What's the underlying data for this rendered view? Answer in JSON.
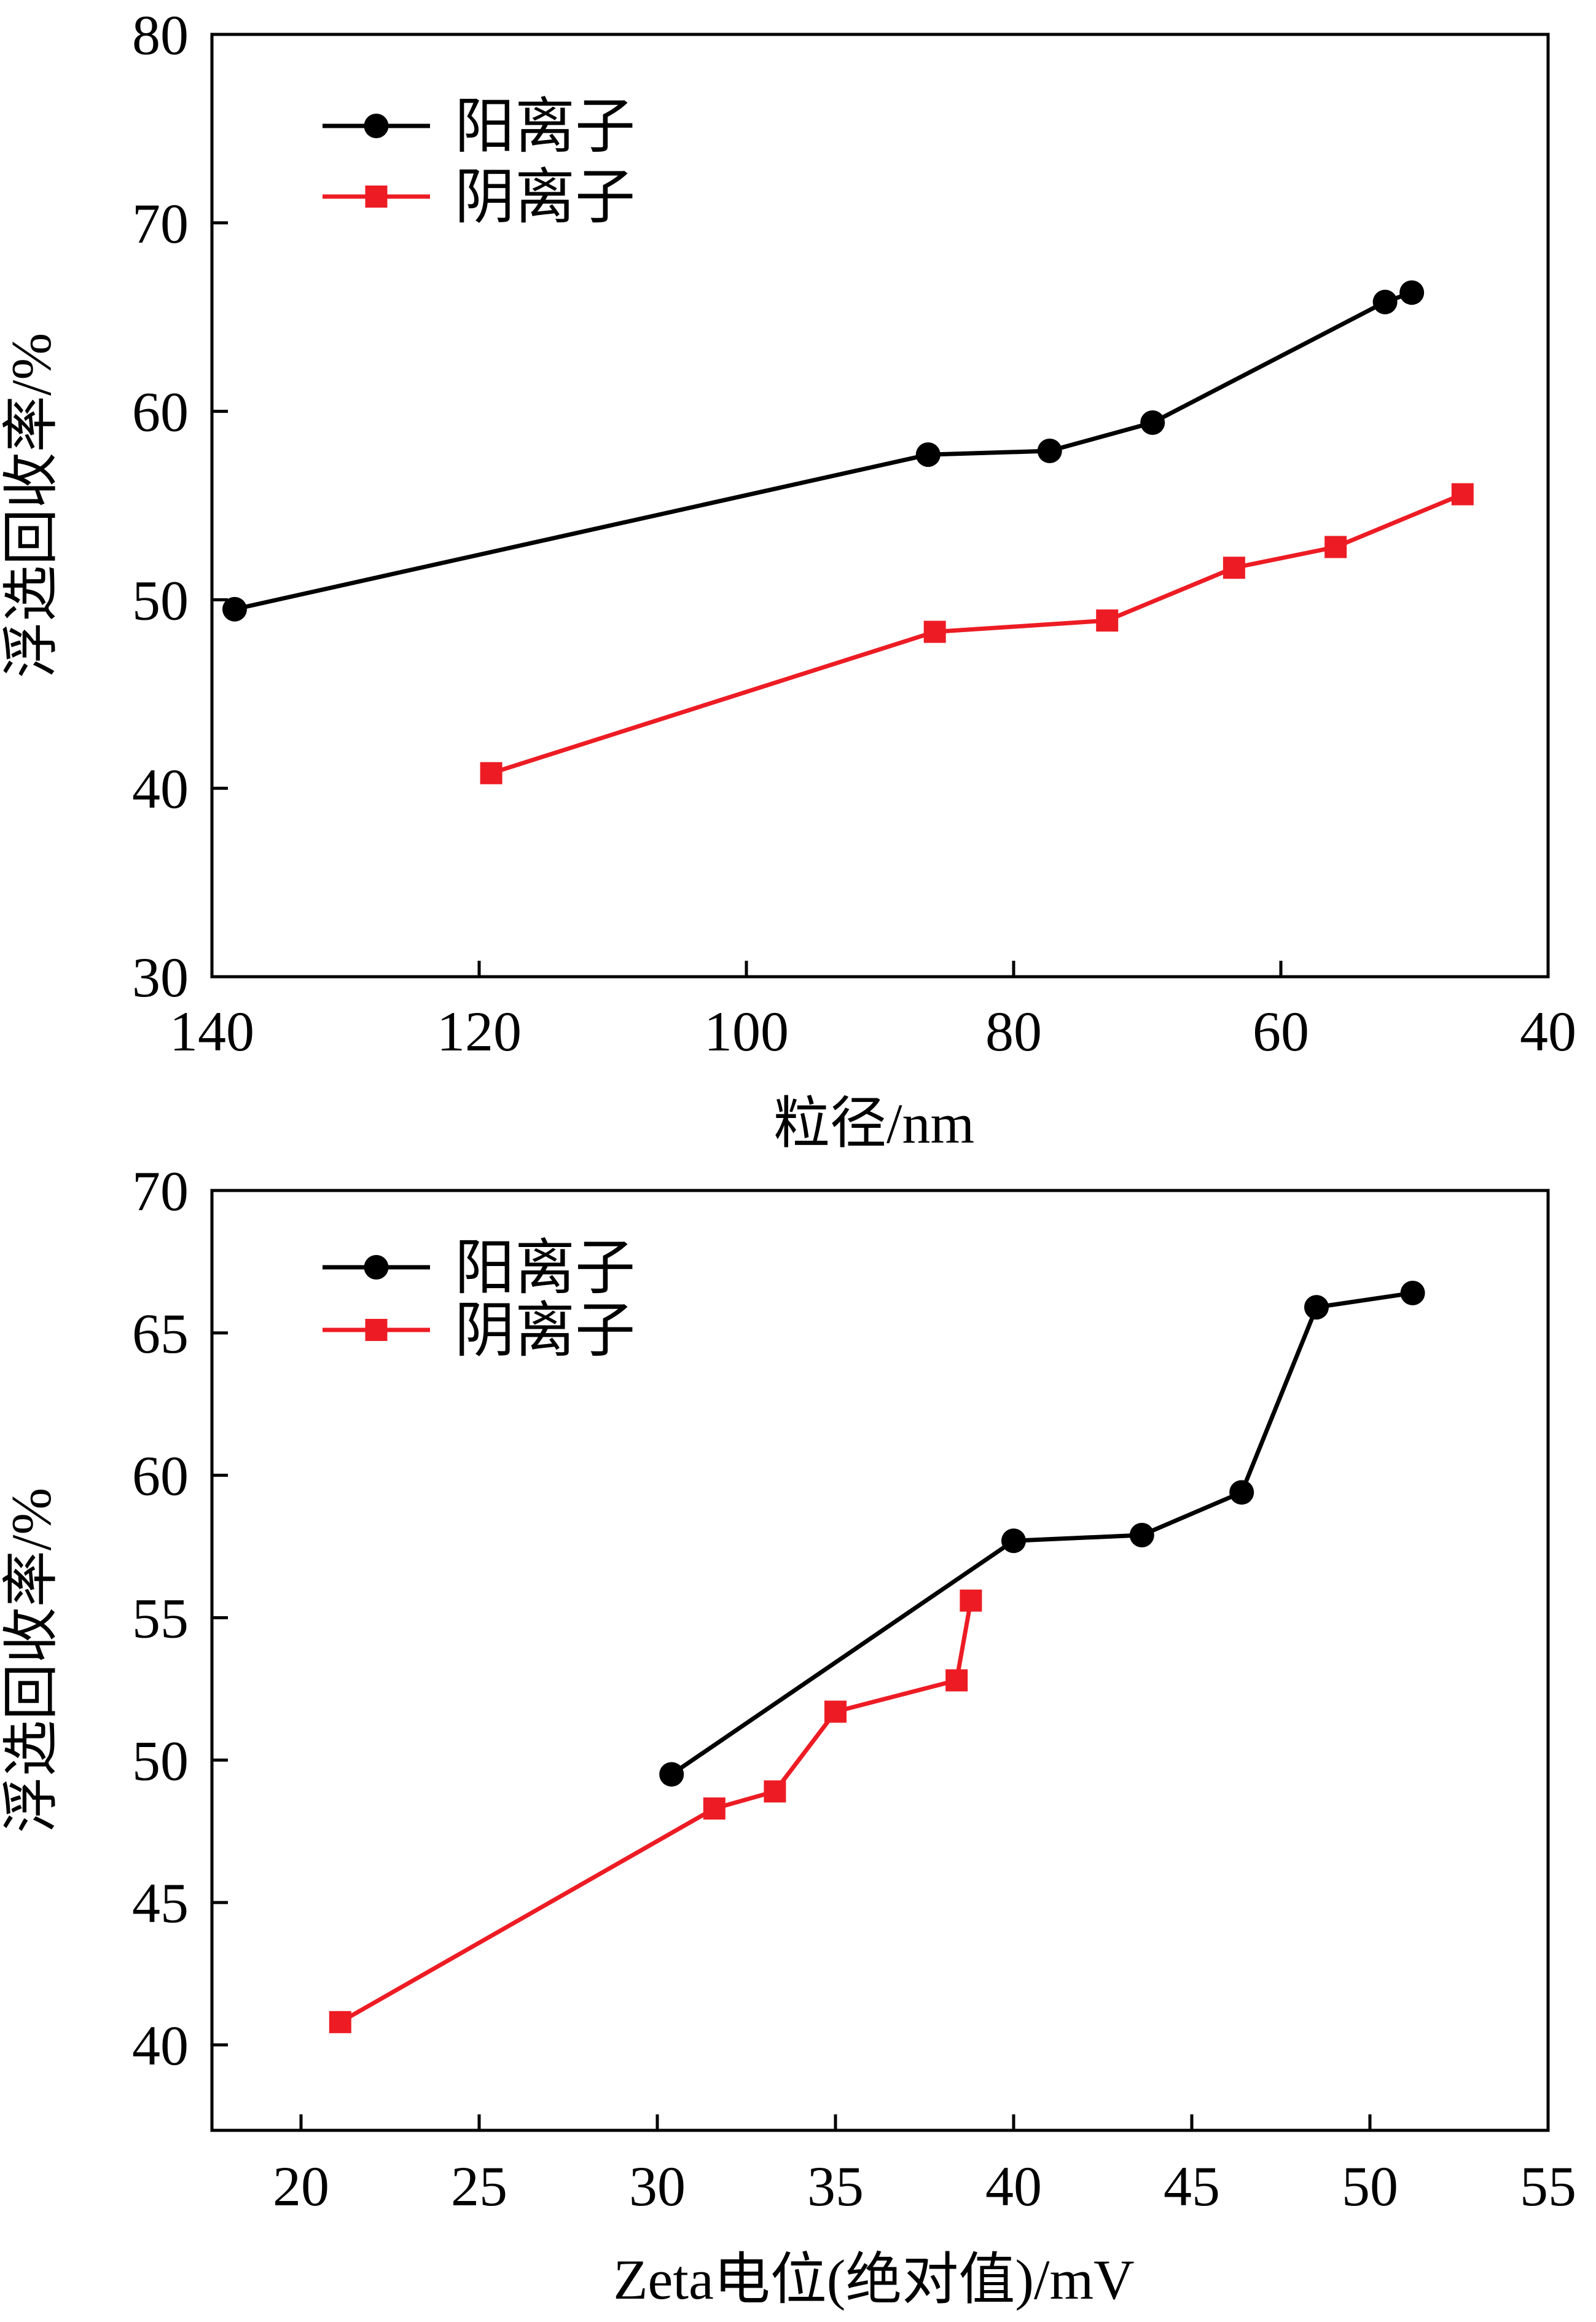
{
  "chart_data": [
    {
      "type": "line",
      "xlabel": "粒径/nm",
      "ylabel": "浮选回收率/%",
      "xlim": [
        140,
        40
      ],
      "ylim": [
        30,
        80
      ],
      "x_reversed": true,
      "xticks": [
        140,
        120,
        100,
        80,
        60,
        40
      ],
      "yticks": [
        30,
        40,
        50,
        60,
        70,
        80
      ],
      "grid": false,
      "legend_position": "top-left",
      "series": [
        {
          "name": "阳离子",
          "color": "#000000",
          "marker": "circle",
          "x": [
            138.3,
            86.4,
            77.3,
            69.6,
            52.2,
            50.2
          ],
          "y": [
            49.5,
            57.7,
            57.9,
            59.4,
            65.8,
            66.3
          ]
        },
        {
          "name": "阴离子",
          "color": "#ed1c24",
          "marker": "square",
          "x": [
            119.1,
            85.9,
            73.0,
            63.5,
            55.9,
            46.4
          ],
          "y": [
            40.8,
            48.3,
            48.9,
            51.7,
            52.8,
            55.6
          ]
        }
      ]
    },
    {
      "type": "line",
      "xlabel": "Zeta电位(绝对值)/mV",
      "ylabel": "浮选回收率/%",
      "xlim": [
        17.5,
        55
      ],
      "ylim": [
        37,
        70
      ],
      "xticks": [
        20,
        25,
        30,
        35,
        40,
        45,
        50,
        55
      ],
      "yticks": [
        40,
        45,
        50,
        55,
        60,
        65,
        70
      ],
      "grid": false,
      "legend_position": "top-left",
      "series": [
        {
          "name": "阳离子",
          "color": "#000000",
          "marker": "circle",
          "x": [
            30.4,
            40.0,
            43.6,
            46.4,
            48.5,
            51.2
          ],
          "y": [
            49.5,
            57.7,
            57.9,
            59.4,
            65.9,
            66.4
          ]
        },
        {
          "name": "阴离子",
          "color": "#ed1c24",
          "marker": "square",
          "x": [
            21.1,
            31.6,
            33.3,
            35.0,
            38.4,
            38.8
          ],
          "y": [
            40.8,
            48.3,
            48.9,
            51.7,
            52.8,
            55.6
          ]
        }
      ]
    }
  ]
}
